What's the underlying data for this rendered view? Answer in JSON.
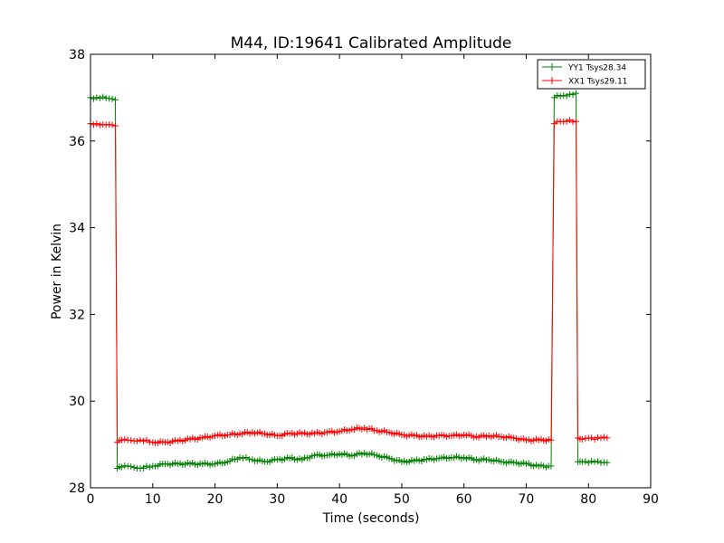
{
  "chart_data": {
    "type": "line",
    "title": "M44, ID:19641 Calibrated Amplitude",
    "xlabel": "Time (seconds)",
    "ylabel": "Power in Kelvin",
    "xlim": [
      0,
      90
    ],
    "ylim": [
      28,
      38
    ],
    "xticks": [
      0,
      10,
      20,
      30,
      40,
      50,
      60,
      70,
      80,
      90
    ],
    "yticks": [
      28,
      30,
      32,
      34,
      36,
      38
    ],
    "grid": false,
    "legend_position": "top-right",
    "series": [
      {
        "name": "YY1 Tsys28.34",
        "color": "#008000",
        "x": [
          0,
          1,
          2,
          3,
          4,
          4.3,
          5,
          6,
          7,
          8,
          9,
          10,
          12,
          14,
          16,
          18,
          20,
          22,
          24,
          25,
          26,
          28,
          30,
          32,
          34,
          36,
          38,
          40,
          42,
          44,
          46,
          48,
          50,
          52,
          54,
          56,
          58,
          60,
          62,
          64,
          66,
          68,
          70,
          72,
          74,
          74.5,
          75,
          76,
          77,
          78,
          78.3,
          79,
          80,
          81,
          82,
          83
        ],
        "y": [
          37.0,
          37.0,
          37.02,
          36.98,
          36.95,
          28.45,
          28.48,
          28.5,
          28.47,
          28.45,
          28.5,
          28.5,
          28.55,
          28.55,
          28.55,
          28.55,
          28.55,
          28.6,
          28.7,
          28.7,
          28.65,
          28.6,
          28.65,
          28.68,
          28.65,
          28.75,
          28.75,
          28.78,
          28.75,
          28.8,
          28.75,
          28.68,
          28.6,
          28.62,
          28.65,
          28.68,
          28.7,
          28.7,
          28.65,
          28.65,
          28.6,
          28.58,
          28.55,
          28.5,
          28.5,
          37.0,
          37.05,
          37.05,
          37.08,
          37.1,
          28.6,
          28.6,
          28.58,
          28.6,
          28.58,
          28.58
        ]
      },
      {
        "name": "XX1 Tsys29.11",
        "color": "#ff0000",
        "x": [
          0,
          1,
          2,
          3,
          4,
          4.3,
          5,
          6,
          7,
          8,
          9,
          10,
          12,
          14,
          16,
          18,
          20,
          22,
          24,
          26,
          28,
          30,
          32,
          34,
          36,
          38,
          40,
          42,
          44,
          46,
          48,
          50,
          52,
          54,
          56,
          58,
          60,
          62,
          64,
          66,
          68,
          70,
          72,
          74,
          74.5,
          75,
          76,
          77,
          78,
          78.3,
          79,
          80,
          81,
          82,
          83
        ],
        "y": [
          36.4,
          36.4,
          36.38,
          36.38,
          36.35,
          29.05,
          29.1,
          29.1,
          29.08,
          29.1,
          29.1,
          29.05,
          29.05,
          29.08,
          29.12,
          29.15,
          29.2,
          29.22,
          29.25,
          29.28,
          29.25,
          29.2,
          29.25,
          29.25,
          29.25,
          29.28,
          29.3,
          29.35,
          29.38,
          29.32,
          29.28,
          29.22,
          29.2,
          29.18,
          29.2,
          29.2,
          29.22,
          29.18,
          29.2,
          29.18,
          29.15,
          29.1,
          29.1,
          29.1,
          36.4,
          36.45,
          36.45,
          36.48,
          36.45,
          29.15,
          29.12,
          29.15,
          29.12,
          29.15,
          29.15
        ]
      }
    ]
  }
}
